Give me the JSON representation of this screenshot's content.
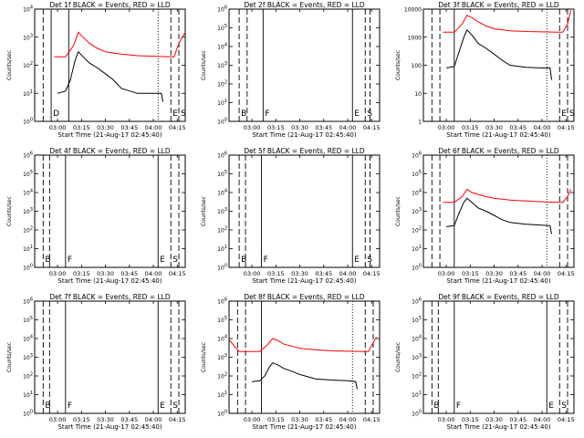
{
  "page": {
    "start_time_label": "Start Time (21-Aug-17 02:45:40)"
  },
  "colors": {
    "events": "#000000",
    "lld": "#ff0000",
    "axes": "#000000",
    "background": "#ffffff"
  },
  "chart_data": [
    {
      "type": "line",
      "title": "Det 1f BLACK = Events, RED = LLD",
      "xlabel": "Start Time (21-Aug-17 02:45:40)",
      "ylabel": "Counts/sec",
      "y_scale": "log",
      "ylim": [
        1,
        10000
      ],
      "y_tick_labels": [
        "10^0",
        "10^1",
        "10^2",
        "10^3",
        "10^4"
      ],
      "x_tick_labels": [
        "03:00",
        "03:15",
        "03:30",
        "03:45",
        "04:00",
        "04:15"
      ],
      "markers": [
        {
          "x": "02:56",
          "style": "solid",
          "label": "D"
        },
        {
          "x": "02:51",
          "style": "dashed",
          "label": ""
        },
        {
          "x": "03:07",
          "style": "solid",
          "label": ""
        },
        {
          "x": "04:03",
          "style": "dotted",
          "label": ""
        },
        {
          "x": "04:11",
          "style": "dashed",
          "label": "E"
        },
        {
          "x": "04:16",
          "style": "dashed",
          "label": "S"
        }
      ],
      "series": [
        {
          "color": "#ff0000",
          "x": [
            "02:58",
            "03:05",
            "03:10",
            "03:13",
            "03:16",
            "03:20",
            "03:25",
            "03:30",
            "03:40",
            "03:50",
            "04:00",
            "04:10",
            "04:13",
            "04:16",
            "04:20"
          ],
          "y": [
            200,
            200,
            500,
            1500,
            1000,
            600,
            400,
            300,
            250,
            220,
            210,
            200,
            200,
            600,
            1500
          ]
        },
        {
          "color": "#000000",
          "x": [
            "03:00",
            "03:05",
            "03:08",
            "03:11",
            "03:13",
            "03:16",
            "03:20",
            "03:25",
            "03:30",
            "03:35",
            "03:40",
            "03:50",
            "04:00",
            "04:05",
            "04:06"
          ],
          "y": [
            10,
            12,
            30,
            150,
            300,
            200,
            120,
            80,
            50,
            30,
            15,
            10,
            10,
            10,
            5
          ]
        }
      ]
    },
    {
      "type": "line",
      "title": "Det 2f BLACK = Events, RED = LLD",
      "xlabel": "Start Time (21-Aug-17 02:45:40)",
      "ylabel": "Counts/sec",
      "y_scale": "log",
      "ylim": [
        1,
        1000000
      ],
      "y_tick_labels": [
        "10^0",
        "10^1",
        "10^2",
        "10^3",
        "10^4",
        "10^5",
        "10^6"
      ],
      "x_tick_labels": [
        "03:00",
        "03:15",
        "03:30",
        "03:45",
        "04:00",
        "04:15"
      ],
      "markers": [
        {
          "x": "02:52",
          "style": "dashed",
          "label": "B"
        },
        {
          "x": "02:57",
          "style": "dashed",
          "label": ""
        },
        {
          "x": "03:07",
          "style": "solid",
          "label": "F"
        },
        {
          "x": "04:03",
          "style": "solid",
          "label": "E"
        },
        {
          "x": "04:11",
          "style": "dashed",
          "label": "S"
        },
        {
          "x": "04:14",
          "style": "dashed",
          "label": ""
        }
      ],
      "series": []
    },
    {
      "type": "line",
      "title": "Det 3f BLACK = Events, RED = LLD",
      "xlabel": "Start Time (21-Aug-17 02:45:40)",
      "ylabel": "Counts/sec",
      "y_scale": "log",
      "ylim": [
        1,
        10000
      ],
      "y_tick_labels": [
        "1",
        "10",
        "100",
        "1000",
        "10000"
      ],
      "x_tick_labels": [
        "03:00",
        "03:15",
        "03:30",
        "03:45",
        "04:00",
        "04:15"
      ],
      "markers": [
        {
          "x": "02:51",
          "style": "dashed",
          "label": ""
        },
        {
          "x": "02:56",
          "style": "dashed",
          "label": ""
        },
        {
          "x": "03:05",
          "style": "solid",
          "label": ""
        },
        {
          "x": "04:03",
          "style": "dotted",
          "label": ""
        },
        {
          "x": "04:11",
          "style": "dashed",
          "label": "E"
        },
        {
          "x": "04:16",
          "style": "dashed",
          "label": "S"
        }
      ],
      "series": [
        {
          "color": "#ff0000",
          "x": [
            "02:58",
            "03:05",
            "03:10",
            "03:13",
            "03:16",
            "03:20",
            "03:25",
            "03:30",
            "03:40",
            "03:50",
            "04:00",
            "04:10",
            "04:13",
            "04:16",
            "04:18"
          ],
          "y": [
            1500,
            1500,
            3000,
            6000,
            5000,
            3500,
            2500,
            2000,
            1700,
            1600,
            1550,
            1500,
            1500,
            3000,
            9000
          ]
        },
        {
          "color": "#000000",
          "x": [
            "03:00",
            "03:05",
            "03:08",
            "03:11",
            "03:13",
            "03:16",
            "03:20",
            "03:25",
            "03:30",
            "03:35",
            "03:40",
            "03:50",
            "04:00",
            "04:05",
            "04:06"
          ],
          "y": [
            80,
            90,
            300,
            1000,
            1800,
            1200,
            600,
            400,
            250,
            150,
            100,
            85,
            80,
            80,
            30
          ]
        }
      ]
    },
    {
      "type": "line",
      "title": "Det 4f BLACK = Events, RED = LLD",
      "xlabel": "Start Time (21-Aug-17 02:45:40)",
      "ylabel": "Counts/sec",
      "y_scale": "log",
      "ylim": [
        1,
        1000000
      ],
      "y_tick_labels": [
        "10^0",
        "10^1",
        "10^2",
        "10^3",
        "10^4",
        "10^5",
        "10^6"
      ],
      "x_tick_labels": [
        "03:00",
        "03:15",
        "03:30",
        "03:45",
        "04:00",
        "04:15"
      ],
      "markers": [
        {
          "x": "02:51",
          "style": "dashed",
          "label": "B"
        },
        {
          "x": "02:55",
          "style": "dashed",
          "label": ""
        },
        {
          "x": "03:05",
          "style": "solid",
          "label": "F"
        },
        {
          "x": "04:03",
          "style": "solid",
          "label": "E"
        },
        {
          "x": "04:11",
          "style": "dashed",
          "label": "S"
        },
        {
          "x": "04:16",
          "style": "dashed",
          "label": ""
        }
      ],
      "series": []
    },
    {
      "type": "line",
      "title": "Det 5f BLACK = Events, RED = LLD",
      "xlabel": "Start Time (21-Aug-17 02:45:40)",
      "ylabel": "Counts/sec",
      "y_scale": "log",
      "ylim": [
        1,
        1000000
      ],
      "y_tick_labels": [
        "10^0",
        "10^1",
        "10^2",
        "10^3",
        "10^4",
        "10^5",
        "10^6"
      ],
      "x_tick_labels": [
        "03:00",
        "03:15",
        "03:30",
        "03:45",
        "04:00",
        "04:15"
      ],
      "markers": [
        {
          "x": "02:52",
          "style": "dashed",
          "label": "B"
        },
        {
          "x": "02:56",
          "style": "dashed",
          "label": ""
        },
        {
          "x": "03:06",
          "style": "solid",
          "label": "F"
        },
        {
          "x": "04:03",
          "style": "solid",
          "label": "E"
        },
        {
          "x": "04:11",
          "style": "dashed",
          "label": "S"
        },
        {
          "x": "04:14",
          "style": "dashed",
          "label": ""
        }
      ],
      "series": []
    },
    {
      "type": "line",
      "title": "Det 6f BLACK = Events, RED = LLD",
      "xlabel": "Start Time (21-Aug-17 02:45:40)",
      "ylabel": "Counts/sec",
      "y_scale": "log",
      "ylim": [
        1,
        1000000
      ],
      "y_tick_labels": [
        "10^0",
        "10^1",
        "10^2",
        "10^3",
        "10^4",
        "10^5",
        "10^6"
      ],
      "x_tick_labels": [
        "03:00",
        "03:15",
        "03:30",
        "03:45",
        "04:00",
        "04:15"
      ],
      "markers": [
        {
          "x": "02:51",
          "style": "dashed",
          "label": ""
        },
        {
          "x": "02:56",
          "style": "dashed",
          "label": ""
        },
        {
          "x": "03:05",
          "style": "solid",
          "label": ""
        },
        {
          "x": "04:03",
          "style": "dotted",
          "label": ""
        },
        {
          "x": "04:11",
          "style": "dashed",
          "label": ""
        },
        {
          "x": "04:16",
          "style": "dashed",
          "label": ""
        }
      ],
      "series": [
        {
          "color": "#ff0000",
          "x": [
            "02:58",
            "03:05",
            "03:10",
            "03:13",
            "03:16",
            "03:20",
            "03:25",
            "03:30",
            "03:40",
            "03:50",
            "04:00",
            "04:10",
            "04:13",
            "04:16",
            "04:18"
          ],
          "y": [
            3000,
            3000,
            6000,
            15000,
            10000,
            8000,
            6000,
            5000,
            4000,
            3500,
            3200,
            3000,
            3000,
            6000,
            15000
          ]
        },
        {
          "color": "#000000",
          "x": [
            "03:00",
            "03:05",
            "03:08",
            "03:11",
            "03:13",
            "03:16",
            "03:20",
            "03:25",
            "03:30",
            "03:35",
            "03:40",
            "03:50",
            "04:00",
            "04:05",
            "04:06"
          ],
          "y": [
            150,
            170,
            800,
            3000,
            5000,
            3000,
            1500,
            1000,
            600,
            350,
            250,
            200,
            180,
            170,
            60
          ]
        }
      ]
    },
    {
      "type": "line",
      "title": "Det 7f BLACK = Events, RED = LLD",
      "xlabel": "Start Time (21-Aug-17 02:45:40)",
      "ylabel": "Counts/sec",
      "y_scale": "log",
      "ylim": [
        1,
        1000000
      ],
      "y_tick_labels": [
        "10^0",
        "10^1",
        "10^2",
        "10^3",
        "10^4",
        "10^5",
        "10^6"
      ],
      "x_tick_labels": [
        "03:00",
        "03:15",
        "03:30",
        "03:45",
        "04:00",
        "04:15"
      ],
      "markers": [
        {
          "x": "02:51",
          "style": "dashed",
          "label": "B"
        },
        {
          "x": "02:55",
          "style": "dashed",
          "label": ""
        },
        {
          "x": "03:05",
          "style": "solid",
          "label": "F"
        },
        {
          "x": "04:03",
          "style": "solid",
          "label": "E"
        },
        {
          "x": "04:11",
          "style": "dashed",
          "label": "S"
        },
        {
          "x": "04:16",
          "style": "dashed",
          "label": ""
        }
      ],
      "series": []
    },
    {
      "type": "line",
      "title": "Det 8f BLACK = Events, RED = LLD",
      "xlabel": "Start Time (21-Aug-17 02:45:40)",
      "ylabel": "Counts/sec",
      "y_scale": "log",
      "ylim": [
        1,
        1000000
      ],
      "y_tick_labels": [
        "10^0",
        "10^1",
        "10^2",
        "10^3",
        "10^4",
        "10^5",
        "10^6"
      ],
      "x_tick_labels": [
        "03:00",
        "03:15",
        "03:30",
        "03:45",
        "04:00",
        "04:15"
      ],
      "markers": [
        {
          "x": "02:51",
          "style": "dashed",
          "label": ""
        },
        {
          "x": "02:56",
          "style": "dashed",
          "label": ""
        },
        {
          "x": "03:06",
          "style": "solid",
          "label": ""
        },
        {
          "x": "04:03",
          "style": "dotted",
          "label": ""
        },
        {
          "x": "04:11",
          "style": "dashed",
          "label": ""
        },
        {
          "x": "04:16",
          "style": "dashed",
          "label": ""
        }
      ],
      "series": [
        {
          "color": "#ff0000",
          "x": [
            "02:46",
            "02:48",
            "02:52",
            "02:58",
            "03:05",
            "03:10",
            "03:13",
            "03:16",
            "03:20",
            "03:25",
            "03:30",
            "03:40",
            "03:50",
            "04:00",
            "04:10",
            "04:13",
            "04:16",
            "04:18"
          ],
          "y": [
            8000,
            5000,
            2000,
            2000,
            2000,
            5000,
            10000,
            8000,
            5000,
            4000,
            3000,
            2500,
            2200,
            2100,
            2000,
            2000,
            6000,
            12000
          ]
        },
        {
          "color": "#000000",
          "x": [
            "03:00",
            "03:05",
            "03:08",
            "03:11",
            "03:13",
            "03:16",
            "03:20",
            "03:25",
            "03:30",
            "03:35",
            "03:40",
            "03:50",
            "04:00",
            "04:05",
            "04:06"
          ],
          "y": [
            50,
            55,
            100,
            300,
            500,
            400,
            250,
            180,
            120,
            90,
            70,
            60,
            55,
            50,
            20
          ]
        }
      ]
    },
    {
      "type": "line",
      "title": "Det 9f BLACK = Events, RED = LLD",
      "xlabel": "Start Time (21-Aug-17 02:45:40)",
      "ylabel": "Counts/sec",
      "y_scale": "log",
      "ylim": [
        1,
        1000000
      ],
      "y_tick_labels": [
        "10^0",
        "10^1",
        "10^2",
        "10^3",
        "10^4",
        "10^5",
        "10^6"
      ],
      "x_tick_labels": [
        "03:00",
        "03:15",
        "03:30",
        "03:45",
        "04:00",
        "04:15"
      ],
      "markers": [
        {
          "x": "02:51",
          "style": "dashed",
          "label": "B"
        },
        {
          "x": "02:55",
          "style": "dashed",
          "label": ""
        },
        {
          "x": "03:05",
          "style": "solid",
          "label": "F"
        },
        {
          "x": "04:03",
          "style": "solid",
          "label": "E"
        },
        {
          "x": "04:11",
          "style": "dashed",
          "label": "S"
        },
        {
          "x": "04:16",
          "style": "dashed",
          "label": ""
        }
      ],
      "series": []
    }
  ]
}
